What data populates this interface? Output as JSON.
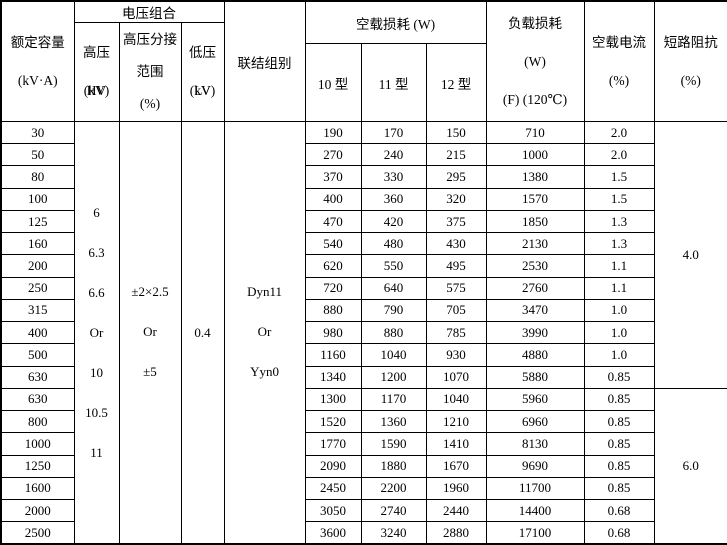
{
  "table": {
    "header": {
      "capacity": [
        "额定容量",
        "(kV·A)"
      ],
      "voltage_group": "电压组合",
      "hv": [
        "高压 HV",
        "(kV)"
      ],
      "tap": [
        "高压分接",
        "范围",
        "(%)"
      ],
      "lv": [
        "低压 LV",
        "(kV)"
      ],
      "connection": "联结组别",
      "no_load_loss": "空载损耗 (W)",
      "types": [
        "10 型",
        "11 型",
        "12 型"
      ],
      "load_loss": [
        "负载损耗",
        "(W)",
        "(F) (120℃)"
      ],
      "no_load_current": [
        "空载电流",
        "(%)"
      ],
      "impedance": [
        "短路阻抗",
        "(%)"
      ]
    },
    "merged": {
      "hv_lines": [
        "6",
        "6.3",
        "6.6",
        "Or",
        "10",
        "10.5",
        "11"
      ],
      "tap_lines": [
        "±2×2.5",
        "Or",
        "±5"
      ],
      "lv_lines": [
        "0.4"
      ],
      "connection_lines": [
        "Dyn11",
        "Or",
        "Yyn0"
      ],
      "impedance_groups": [
        {
          "value": "4.0",
          "rows": 12
        },
        {
          "value": "6.0",
          "rows": 7
        }
      ]
    },
    "rows": [
      {
        "capacity": "30",
        "t10": "190",
        "t11": "170",
        "t12": "150",
        "load": "710",
        "current": "2.0"
      },
      {
        "capacity": "50",
        "t10": "270",
        "t11": "240",
        "t12": "215",
        "load": "1000",
        "current": "2.0"
      },
      {
        "capacity": "80",
        "t10": "370",
        "t11": "330",
        "t12": "295",
        "load": "1380",
        "current": "1.5"
      },
      {
        "capacity": "100",
        "t10": "400",
        "t11": "360",
        "t12": "320",
        "load": "1570",
        "current": "1.5"
      },
      {
        "capacity": "125",
        "t10": "470",
        "t11": "420",
        "t12": "375",
        "load": "1850",
        "current": "1.3"
      },
      {
        "capacity": "160",
        "t10": "540",
        "t11": "480",
        "t12": "430",
        "load": "2130",
        "current": "1.3"
      },
      {
        "capacity": "200",
        "t10": "620",
        "t11": "550",
        "t12": "495",
        "load": "2530",
        "current": "1.1"
      },
      {
        "capacity": "250",
        "t10": "720",
        "t11": "640",
        "t12": "575",
        "load": "2760",
        "current": "1.1"
      },
      {
        "capacity": "315",
        "t10": "880",
        "t11": "790",
        "t12": "705",
        "load": "3470",
        "current": "1.0"
      },
      {
        "capacity": "400",
        "t10": "980",
        "t11": "880",
        "t12": "785",
        "load": "3990",
        "current": "1.0"
      },
      {
        "capacity": "500",
        "t10": "1160",
        "t11": "1040",
        "t12": "930",
        "load": "4880",
        "current": "1.0"
      },
      {
        "capacity": "630",
        "t10": "1340",
        "t11": "1200",
        "t12": "1070",
        "load": "5880",
        "current": "0.85"
      },
      {
        "capacity": "630",
        "t10": "1300",
        "t11": "1170",
        "t12": "1040",
        "load": "5960",
        "current": "0.85"
      },
      {
        "capacity": "800",
        "t10": "1520",
        "t11": "1360",
        "t12": "1210",
        "load": "6960",
        "current": "0.85"
      },
      {
        "capacity": "1000",
        "t10": "1770",
        "t11": "1590",
        "t12": "1410",
        "load": "8130",
        "current": "0.85"
      },
      {
        "capacity": "1250",
        "t10": "2090",
        "t11": "1880",
        "t12": "1670",
        "load": "9690",
        "current": "0.85"
      },
      {
        "capacity": "1600",
        "t10": "2450",
        "t11": "2200",
        "t12": "1960",
        "load": "11700",
        "current": "0.85"
      },
      {
        "capacity": "2000",
        "t10": "3050",
        "t11": "2740",
        "t12": "2440",
        "load": "14400",
        "current": "0.68"
      },
      {
        "capacity": "2500",
        "t10": "3600",
        "t11": "3240",
        "t12": "2880",
        "load": "17100",
        "current": "0.68"
      }
    ]
  }
}
